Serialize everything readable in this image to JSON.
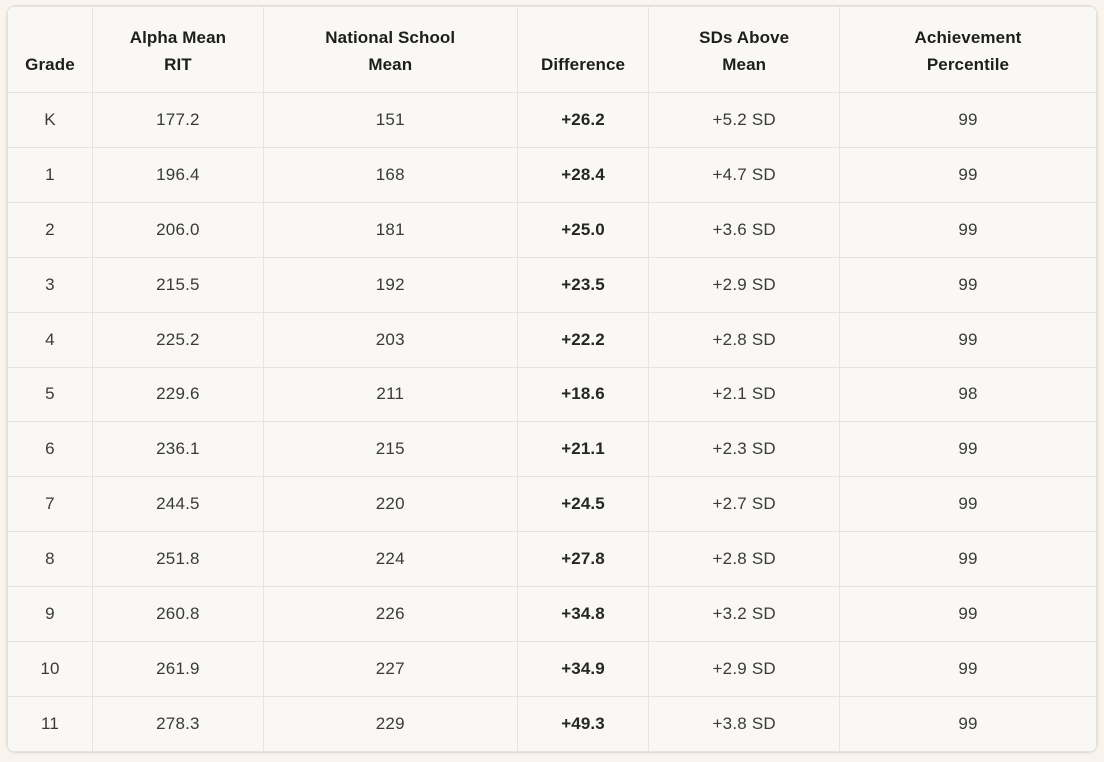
{
  "chart_data": {
    "type": "table",
    "title": "",
    "columns": [
      "Grade",
      "Alpha Mean RIT",
      "National School Mean",
      "Difference",
      "SDs Above Mean",
      "Achievement Percentile"
    ],
    "rows": [
      [
        "K",
        "177.2",
        "151",
        "+26.2",
        "+5.2 SD",
        "99"
      ],
      [
        "1",
        "196.4",
        "168",
        "+28.4",
        "+4.7 SD",
        "99"
      ],
      [
        "2",
        "206.0",
        "181",
        "+25.0",
        "+3.6 SD",
        "99"
      ],
      [
        "3",
        "215.5",
        "192",
        "+23.5",
        "+2.9 SD",
        "99"
      ],
      [
        "4",
        "225.2",
        "203",
        "+22.2",
        "+2.8 SD",
        "99"
      ],
      [
        "5",
        "229.6",
        "211",
        "+18.6",
        "+2.1 SD",
        "98"
      ],
      [
        "6",
        "236.1",
        "215",
        "+21.1",
        "+2.3 SD",
        "99"
      ],
      [
        "7",
        "244.5",
        "220",
        "+24.5",
        "+2.7 SD",
        "99"
      ],
      [
        "8",
        "251.8",
        "224",
        "+27.8",
        "+2.8 SD",
        "99"
      ],
      [
        "9",
        "260.8",
        "226",
        "+34.8",
        "+3.2 SD",
        "99"
      ],
      [
        "10",
        "261.9",
        "227",
        "+34.9",
        "+2.9 SD",
        "99"
      ],
      [
        "11",
        "278.3",
        "229",
        "+49.3",
        "+3.8 SD",
        "99"
      ]
    ],
    "layout": {
      "grid": "on",
      "header_row": true,
      "bold_column": "Difference",
      "rounded_corners": true
    }
  },
  "header": {
    "labels": [
      "Grade",
      "Alpha Mean\nRIT",
      "National School\nMean",
      "Difference",
      "SDs Above\nMean",
      "Achievement\nPercentile"
    ]
  },
  "styles": {
    "colors": {
      "page_bg": "#faf4ee",
      "card_bg": "#f9f8f5",
      "grid_line": "#e7e4df",
      "border_strong": "#e2dfda",
      "header_text": "#1e1e1e",
      "cell_text": "#3a3a3a",
      "bold_cell_text": "#262626"
    }
  }
}
